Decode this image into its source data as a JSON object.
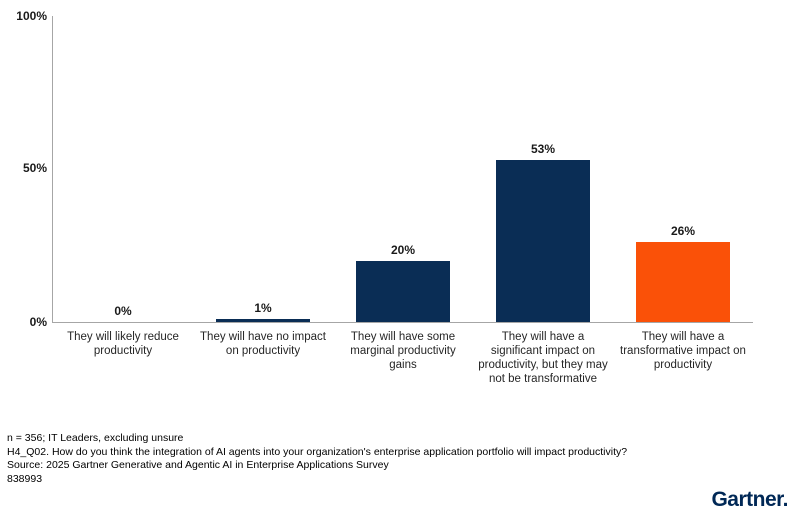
{
  "chart_data": {
    "type": "bar",
    "title": "",
    "categories": [
      "They will likely reduce productivity",
      "They will have no impact on productivity",
      "They will have some marginal productivity gains",
      "They will have a significant impact on productivity, but they may not be transformative",
      "They will have a transformative impact on productivity"
    ],
    "values": [
      0,
      1,
      20,
      53,
      26
    ],
    "value_labels": [
      "0%",
      "1%",
      "20%",
      "53%",
      "26%"
    ],
    "bar_colors": [
      "#0a2d55",
      "#0a2d55",
      "#0a2d55",
      "#0a2d55",
      "#fa5108"
    ],
    "xlabel": "",
    "ylabel": "",
    "ylim": [
      0,
      100
    ],
    "yticks": [
      "100%",
      "50%",
      "0%"
    ],
    "grid": false,
    "legend": "none"
  },
  "footer": {
    "line1": "n = 356; IT Leaders, excluding unsure",
    "line2": "H4_Q02. How do you think the integration of AI agents into your organization's enterprise application portfolio will impact productivity?",
    "line3": "Source: 2025 Gartner Generative and Agentic AI in Enterprise Applications Survey",
    "line4": "838993"
  },
  "branding": {
    "logo_text": "Gartner."
  },
  "colors": {
    "bar_navy": "#0a2d55",
    "bar_orange": "#fa5108",
    "axis_gray": "#a6a6a6",
    "logo_navy": "#002856"
  }
}
